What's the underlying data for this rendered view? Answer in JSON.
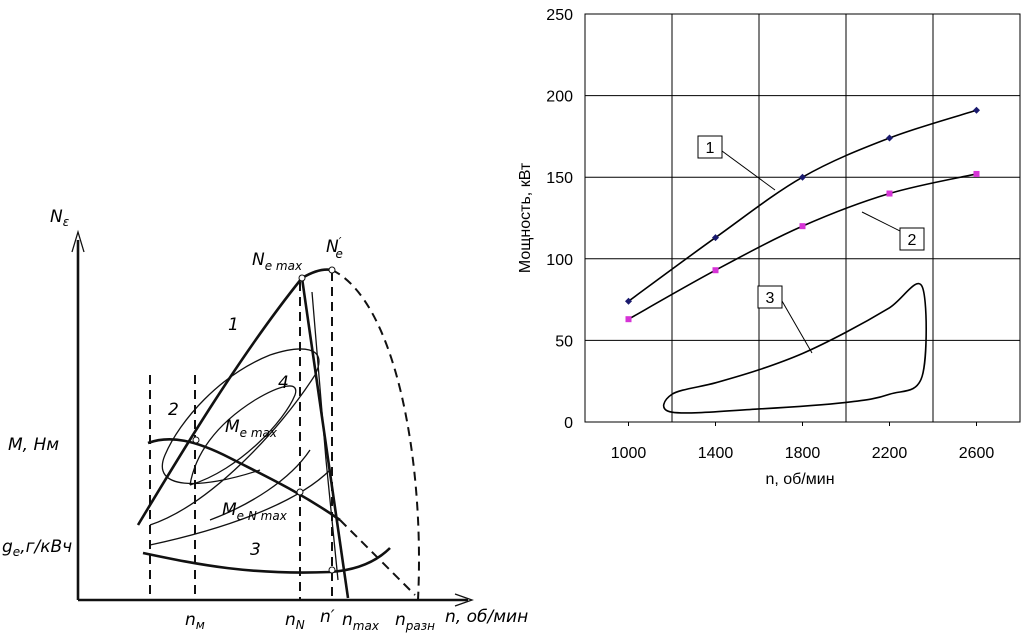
{
  "diagram": {
    "y_axis_label": {
      "text": "N",
      "sub": "ε"
    },
    "ne_max": {
      "text": "N",
      "sub": "e max"
    },
    "ne_prime": {
      "text": "N",
      "sub": "e",
      "sup": "′"
    },
    "curve_labels": [
      "1",
      "2",
      "3",
      "4"
    ],
    "torque_label": "M, Нм",
    "ge_label": {
      "text": "g",
      "sub": "e",
      "tail": ",г/кВч"
    },
    "me_max": {
      "text": "M",
      "sub": "e max"
    },
    "me_nmax": {
      "text": "M",
      "sub": "e N max"
    },
    "n_m": {
      "text": "n",
      "sub": "м"
    },
    "n_n": {
      "text": "n",
      "sub": "N"
    },
    "n_prime": "n′",
    "n_max": {
      "text": "n",
      "sub": "max"
    },
    "n_razn": {
      "text": "n",
      "sub": "разн"
    },
    "x_axis_label": "n, об/мин"
  },
  "chart_data": {
    "type": "line",
    "x_label": "n, об/мин",
    "y_label": "Мощность, кВт",
    "x": [
      1000,
      1400,
      1800,
      2200,
      2600
    ],
    "series": [
      {
        "name": "1",
        "color": "#000000",
        "marker": "diamond",
        "marker_color": "#1a1a6e",
        "values": [
          74,
          113,
          150,
          174,
          191
        ]
      },
      {
        "name": "2",
        "color": "#000000",
        "marker": "square",
        "marker_color": "#d633d6",
        "values": [
          63,
          93,
          120,
          140,
          152
        ]
      },
      {
        "name": "3",
        "color": "#000000",
        "closed": true,
        "x": [
          1200,
          1600,
          2000,
          2200,
          2350,
          2350,
          2200,
          2000,
          1800,
          1600,
          1400,
          1200
        ],
        "values": [
          6,
          8,
          12,
          17,
          28,
          83,
          70,
          55,
          42,
          32,
          24,
          17
        ]
      }
    ],
    "xlim": [
      800,
      2800
    ],
    "xticks": [
      1000,
      1400,
      1800,
      2200,
      2600
    ],
    "xgrid": [
      1200,
      1600,
      2000,
      2400
    ],
    "ylim": [
      0,
      250
    ],
    "yticks": [
      0,
      50,
      100,
      150,
      200,
      250
    ],
    "grid": true
  }
}
